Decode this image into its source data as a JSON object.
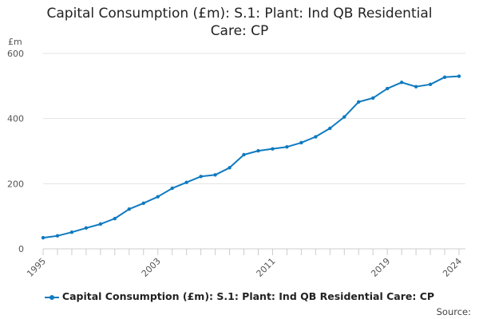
{
  "chart_data": {
    "type": "line",
    "title_lines": [
      "Capital Consumption (£m): S.1: Plant: Ind QB Residential",
      "Care: CP"
    ],
    "ylabel": "£m",
    "xlabel": "",
    "ylim": [
      0,
      600
    ],
    "y_ticks": [
      0,
      200,
      400,
      600
    ],
    "x_range": [
      1995,
      2024
    ],
    "x_tick_labels": [
      "1995",
      "2003",
      "2011",
      "2019",
      "2024"
    ],
    "grid": true,
    "legend_position": "bottom",
    "series": [
      {
        "name": "Capital Consumption (£m): S.1: Plant: Ind QB Residential Care: CP",
        "color": "#0f7ac0",
        "x": [
          1995,
          1996,
          1997,
          1998,
          1999,
          2000,
          2001,
          2002,
          2003,
          2004,
          2005,
          2006,
          2007,
          2008,
          2009,
          2010,
          2011,
          2012,
          2013,
          2014,
          2015,
          2016,
          2017,
          2018,
          2019,
          2020,
          2021,
          2022,
          2023,
          2024
        ],
        "values": [
          34,
          40,
          51,
          64,
          76,
          93,
          122,
          140,
          160,
          186,
          204,
          222,
          227,
          249,
          289,
          301,
          307,
          313,
          326,
          344,
          370,
          405,
          451,
          463,
          492,
          511,
          498,
          505,
          527,
          530
        ]
      }
    ]
  },
  "source_label": "Source:"
}
